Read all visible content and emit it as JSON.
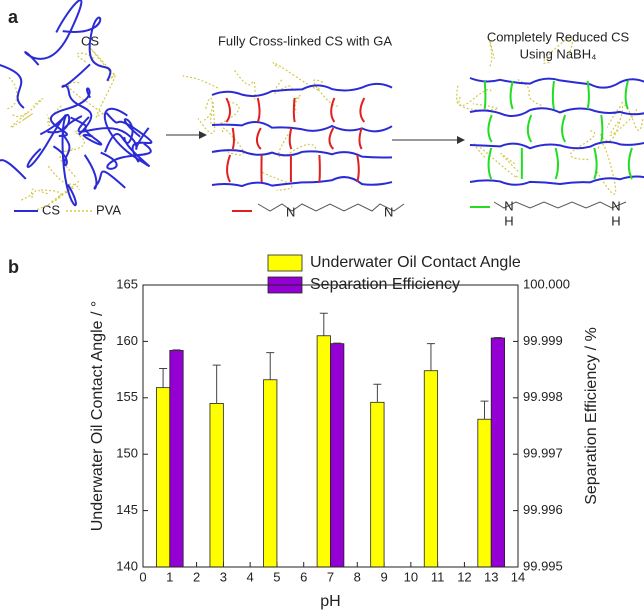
{
  "panel_labels": [
    "a",
    "b"
  ],
  "diagram": {
    "titles": [
      "CS",
      "Fully Cross-linked CS with GA",
      "Completely Reduced CS",
      "Using NaBH₄"
    ],
    "legend": [
      "CS",
      "PVA"
    ],
    "imine_atoms": [
      "N",
      "N"
    ],
    "amine_atoms": [
      "N",
      "H",
      "N",
      "H"
    ]
  },
  "chart_data": {
    "type": "bar",
    "x_label": "pH",
    "y_label": "Underwater Oil Contact Angle / °",
    "y2_label": "Separation Efficiency / %",
    "x": [
      1,
      3,
      5,
      7,
      9,
      11,
      13
    ],
    "xlim": [
      0,
      14
    ],
    "xticks": [
      0,
      1,
      2,
      3,
      4,
      5,
      6,
      7,
      8,
      9,
      10,
      11,
      12,
      13,
      14
    ],
    "ylim": [
      140,
      165
    ],
    "yticks": [
      140,
      145,
      150,
      155,
      160,
      165
    ],
    "y2lim": [
      99.995,
      100
    ],
    "y2ticks": [
      99.995,
      99.996,
      99.997,
      99.998,
      99.999,
      {
        "value": 100,
        "label": "100.000"
      }
    ],
    "legend_position": "top",
    "series": [
      {
        "name": "Underwater Oil Contact Angle",
        "color": "#ffff00",
        "values": [
          155.9,
          154.5,
          156.6,
          160.5,
          154.6,
          157.4,
          153.1
        ],
        "errors": [
          1.7,
          3.4,
          2.4,
          2.0,
          1.6,
          2.4,
          1.6
        ]
      },
      {
        "name": "Separation Efficiency",
        "color": "#9400d3",
        "axis": "y2",
        "values": [
          99.99884,
          null,
          null,
          99.99896,
          null,
          null,
          99.99906
        ],
        "errors": [
          1e-05,
          null,
          null,
          1e-05,
          null,
          null,
          1e-05
        ]
      }
    ]
  }
}
